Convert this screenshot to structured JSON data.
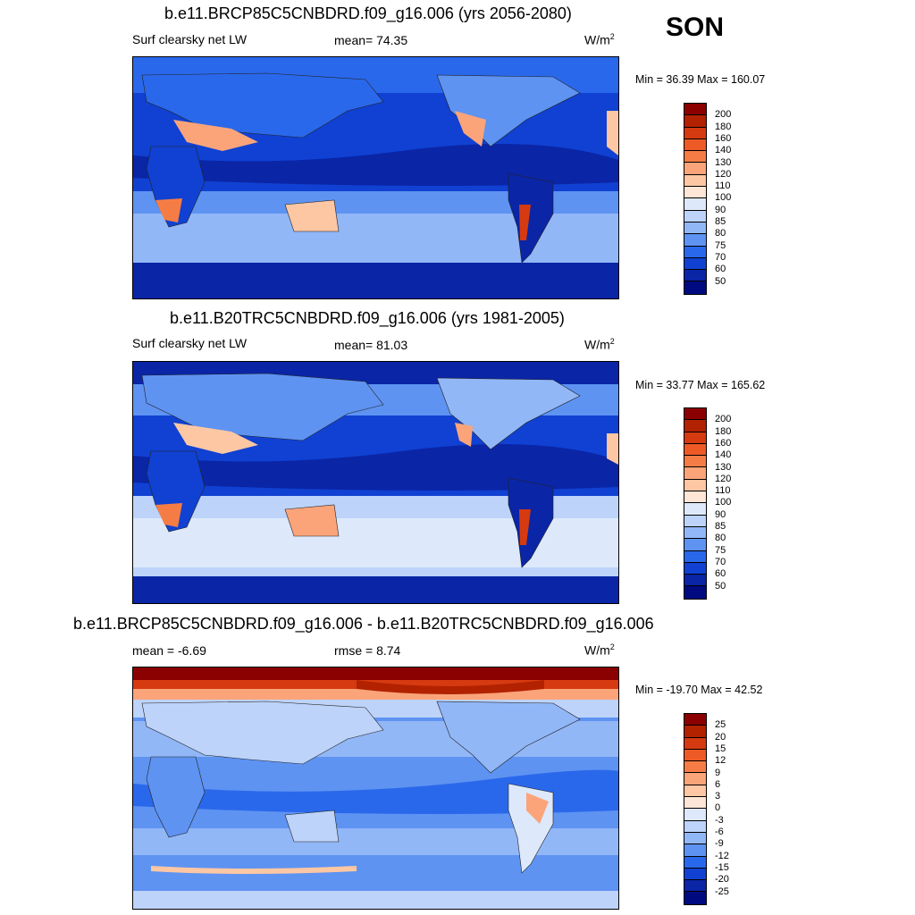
{
  "season": "SON",
  "panels": [
    {
      "title": "b.e11.BRCP85C5CNBDRD.f09_g16.006 (yrs 2056-2080)",
      "variable": "Surf clearsky net LW",
      "stat1": "mean=  74.35",
      "stat2": "",
      "units": "W/m",
      "units_sup": "2",
      "minmax": "Min =  36.39 Max = 160.07",
      "colorbar_labels": [
        "200",
        "180",
        "160",
        "140",
        "130",
        "120",
        "110",
        "100",
        "90",
        "85",
        "80",
        "75",
        "70",
        "60",
        "50"
      ]
    },
    {
      "title": "b.e11.B20TRC5CNBDRD.f09_g16.006 (yrs 1981-2005)",
      "variable": "Surf clearsky net LW",
      "stat1": "mean=  81.03",
      "stat2": "",
      "units": "W/m",
      "units_sup": "2",
      "minmax": "Min =  33.77 Max = 165.62",
      "colorbar_labels": [
        "200",
        "180",
        "160",
        "140",
        "130",
        "120",
        "110",
        "100",
        "90",
        "85",
        "80",
        "75",
        "70",
        "60",
        "50"
      ]
    },
    {
      "title": "b.e11.BRCP85C5CNBDRD.f09_g16.006 - b.e11.B20TRC5CNBDRD.f09_g16.006",
      "variable": "",
      "stat1": "mean =  -6.69",
      "stat2": "rmse =    8.74",
      "units": "W/m",
      "units_sup": "2",
      "minmax": "Min = -19.70 Max =  42.52",
      "colorbar_labels": [
        "25",
        "20",
        "15",
        "12",
        "9",
        "6",
        "3",
        "0",
        "-3",
        "-6",
        "-9",
        "-12",
        "-15",
        "-20",
        "-25"
      ]
    }
  ],
  "colors": {
    "abs_scale": [
      "#8b0000",
      "#b22200",
      "#d63a10",
      "#ee5a25",
      "#f57d45",
      "#fba47a",
      "#fdc7a4",
      "#fde6d6",
      "#dde9fb",
      "#bdd3f9",
      "#92b7f7",
      "#5e93f2",
      "#2a68eb",
      "#1041d2",
      "#0a25a6",
      "#000a80"
    ],
    "diff_scale": [
      "#8b0000",
      "#b22200",
      "#d63a10",
      "#ee5a25",
      "#f57d45",
      "#fba47a",
      "#fdc7a4",
      "#fde6d6",
      "#dde9fb",
      "#bdd3f9",
      "#92b7f7",
      "#5e93f2",
      "#2a68eb",
      "#1041d2",
      "#0a25a6",
      "#000a80"
    ]
  }
}
